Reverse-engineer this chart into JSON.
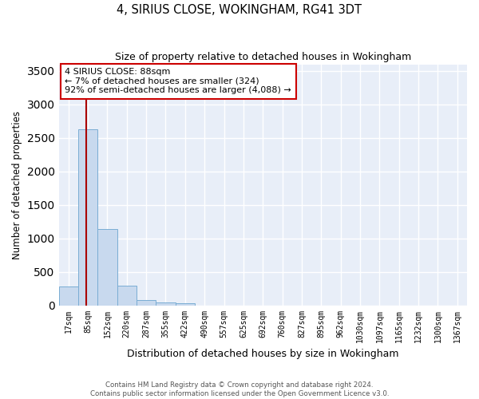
{
  "title": "4, SIRIUS CLOSE, WOKINGHAM, RG41 3DT",
  "subtitle": "Size of property relative to detached houses in Wokingham",
  "xlabel": "Distribution of detached houses by size in Wokingham",
  "ylabel": "Number of detached properties",
  "bar_color": "#c8d9ee",
  "bar_edge_color": "#7aadd4",
  "background_color": "#e8eef8",
  "grid_color": "#ffffff",
  "categories": [
    "17sqm",
    "85sqm",
    "152sqm",
    "220sqm",
    "287sqm",
    "355sqm",
    "422sqm",
    "490sqm",
    "557sqm",
    "625sqm",
    "692sqm",
    "760sqm",
    "827sqm",
    "895sqm",
    "962sqm",
    "1030sqm",
    "1097sqm",
    "1165sqm",
    "1232sqm",
    "1300sqm",
    "1367sqm"
  ],
  "values": [
    280,
    2630,
    1140,
    290,
    85,
    45,
    30,
    0,
    0,
    0,
    0,
    0,
    0,
    0,
    0,
    0,
    0,
    0,
    0,
    0,
    0
  ],
  "ylim": [
    0,
    3600
  ],
  "yticks": [
    0,
    500,
    1000,
    1500,
    2000,
    2500,
    3000,
    3500
  ],
  "vline_x": 0.93,
  "vline_color": "#aa0000",
  "annotation_text": "4 SIRIUS CLOSE: 88sqm\n← 7% of detached houses are smaller (324)\n92% of semi-detached houses are larger (4,088) →",
  "annotation_box_color": "#cc0000",
  "annotation_text_color": "#000000",
  "footer_line1": "Contains HM Land Registry data © Crown copyright and database right 2024.",
  "footer_line2": "Contains public sector information licensed under the Open Government Licence v3.0."
}
